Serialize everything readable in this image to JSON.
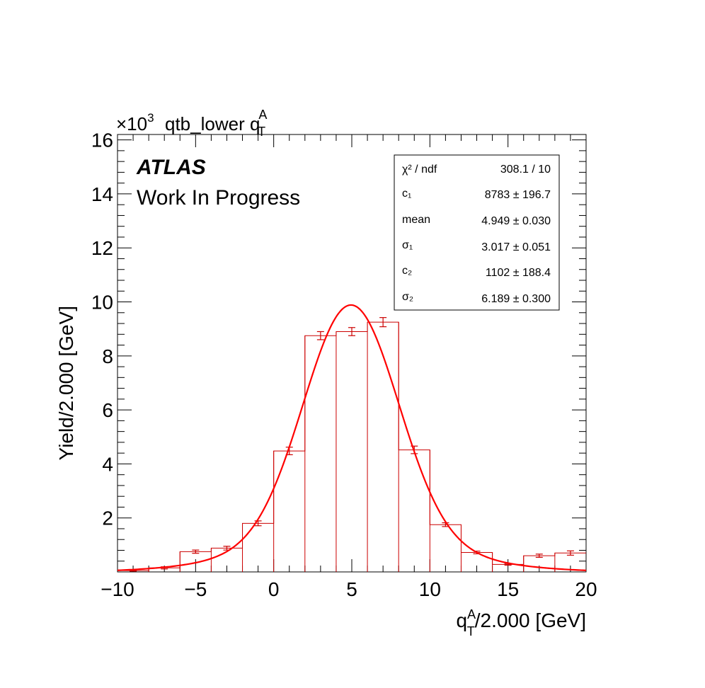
{
  "chart_data": {
    "type": "bar",
    "title": "qtb_lower q",
    "title_sub": "T",
    "title_sup": "A",
    "exponent_label": {
      "base": "×10",
      "power": "3"
    },
    "xlabel": {
      "pre": "q",
      "sub": "T",
      "sup": "A",
      "post": "/2.000 [GeV]"
    },
    "ylabel": "Yield/2.000 [GeV]",
    "xlim": [
      -10,
      20
    ],
    "ylim": [
      0,
      16.2
    ],
    "x_ticks": [
      -10,
      -5,
      0,
      5,
      10,
      15,
      20
    ],
    "x_tick_labels": [
      "−10",
      "−5",
      "0",
      "5",
      "10",
      "15",
      "20"
    ],
    "y_ticks": [
      2,
      4,
      6,
      8,
      10,
      12,
      14,
      16
    ],
    "y_tick_labels": [
      "2",
      "4",
      "6",
      "8",
      "10",
      "12",
      "14",
      "16"
    ],
    "bin_edges": [
      -10,
      -8,
      -6,
      -4,
      -2,
      0,
      2,
      4,
      6,
      8,
      10,
      12,
      14,
      16,
      18,
      20
    ],
    "values": [
      0.05,
      0.15,
      0.75,
      0.88,
      1.8,
      4.48,
      8.75,
      8.9,
      9.25,
      4.52,
      1.75,
      0.72,
      0.28,
      0.6,
      0.7
    ],
    "errors": [
      0.02,
      0.04,
      0.06,
      0.07,
      0.09,
      0.14,
      0.15,
      0.15,
      0.17,
      0.14,
      0.07,
      0.05,
      0.03,
      0.06,
      0.08
    ],
    "fit": {
      "model": "double_gaussian",
      "c1": 8783,
      "mean": 4.949,
      "sigma1": 3.017,
      "c2": 1102,
      "sigma2": 6.189
    },
    "histogram_color": "#cc0000",
    "fit_color": "#ff0000"
  },
  "labels": {
    "atlas": "ATLAS",
    "work_in_progress": "Work In Progress"
  },
  "stats_box": [
    {
      "label": "χ² / ndf",
      "value": "308.1 / 10"
    },
    {
      "label": "c₁",
      "value": "8783 ± 196.7"
    },
    {
      "label": "mean",
      "value": "4.949 ± 0.030"
    },
    {
      "label": "σ₁",
      "value": "3.017 ± 0.051"
    },
    {
      "label": "c₂",
      "value": "1102 ± 188.4"
    },
    {
      "label": "σ₂",
      "value": "6.189 ± 0.300"
    }
  ]
}
